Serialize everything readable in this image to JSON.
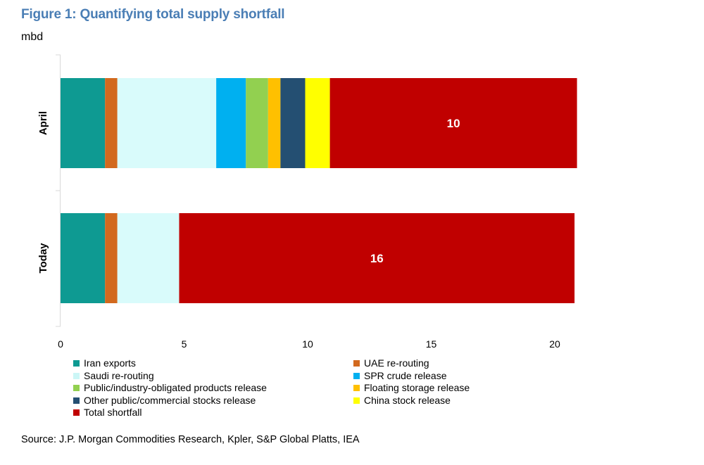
{
  "title": "Figure 1: Quantifying total supply shortfall",
  "unit_label": "mbd",
  "source": "Source: J.P. Morgan Commodities Research, Kpler, S&P Global Platts, IEA",
  "chart_data": {
    "type": "bar",
    "orientation": "horizontal",
    "stacked": true,
    "categories": [
      "April",
      "Today"
    ],
    "xlim": [
      0,
      20
    ],
    "xticks": [
      0,
      5,
      10,
      15,
      20
    ],
    "ylabel": "mbd",
    "grid": false,
    "legend_position": "bottom",
    "series": [
      {
        "name": "Iran exports",
        "color": "#0e9a92",
        "values": [
          1.8,
          1.8
        ]
      },
      {
        "name": "UAE re-routing",
        "color": "#d2691e",
        "values": [
          0.5,
          0.5
        ]
      },
      {
        "name": "Saudi re-routing",
        "color": "#d9fbfb",
        "values": [
          4.0,
          2.5
        ]
      },
      {
        "name": "SPR crude release",
        "color": "#00b0f0",
        "values": [
          1.2,
          0
        ]
      },
      {
        "name": "Public/industry-obligated products release",
        "color": "#92d050",
        "values": [
          0.9,
          0
        ]
      },
      {
        "name": "Floating storage release",
        "color": "#ffc000",
        "values": [
          0.5,
          0
        ]
      },
      {
        "name": "Other public/commercial stocks release",
        "color": "#244f72",
        "values": [
          1.0,
          0
        ]
      },
      {
        "name": "China stock release",
        "color": "#ffff00",
        "values": [
          1.0,
          0
        ]
      },
      {
        "name": "Total shortfall",
        "color": "#c00000",
        "values": [
          10,
          16
        ]
      }
    ],
    "data_labels": [
      {
        "category": "April",
        "series": "Total shortfall",
        "text": "10"
      },
      {
        "category": "Today",
        "series": "Total shortfall",
        "text": "16"
      }
    ]
  }
}
